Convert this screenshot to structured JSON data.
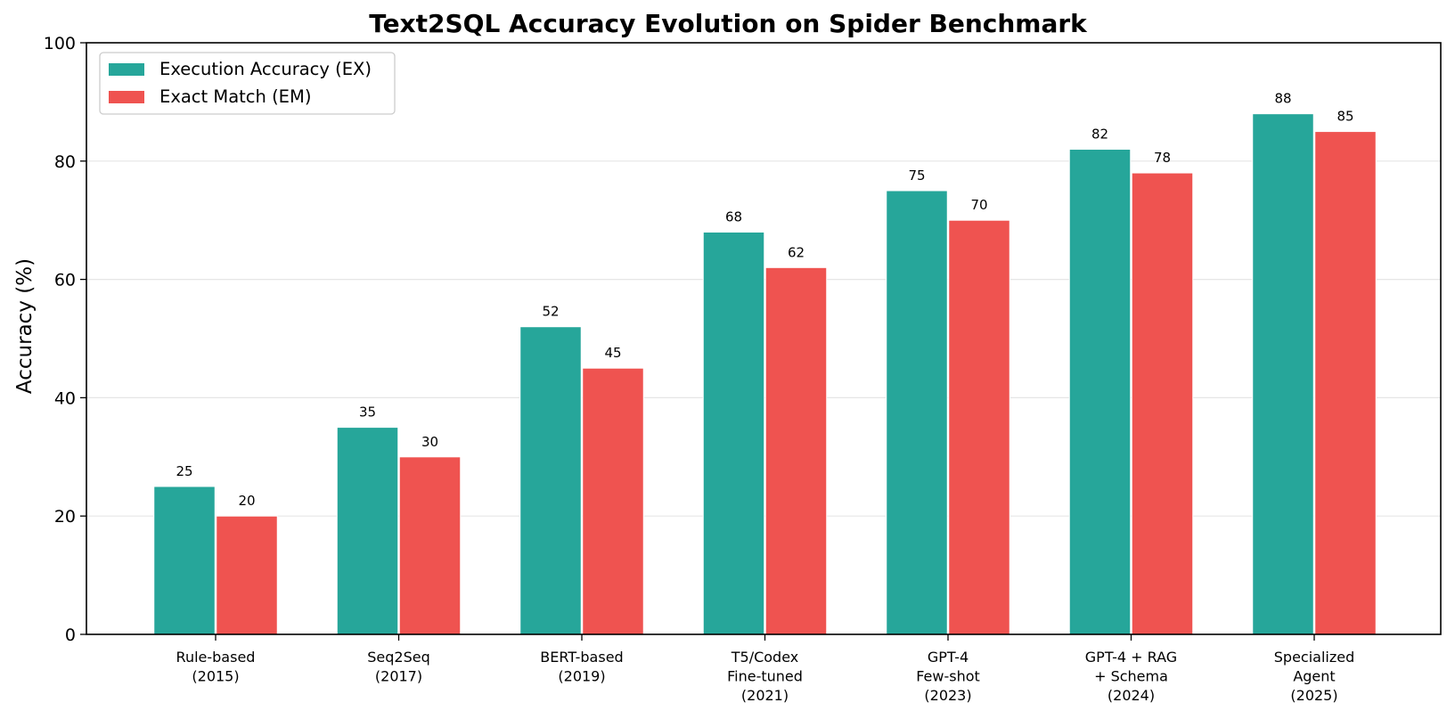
{
  "chart_data": {
    "type": "bar",
    "title": "Text2SQL Accuracy Evolution on Spider Benchmark",
    "xlabel": "",
    "ylabel": "Accuracy (%)",
    "ylim": [
      0,
      100
    ],
    "yticks": [
      0,
      20,
      40,
      60,
      80,
      100
    ],
    "grid": "horizontal",
    "legend_position": "top-left",
    "categories": [
      [
        "Rule-based",
        "(2015)"
      ],
      [
        "Seq2Seq",
        "(2017)"
      ],
      [
        "BERT-based",
        "(2019)"
      ],
      [
        "T5/Codex",
        "Fine-tuned",
        "(2021)"
      ],
      [
        "GPT-4",
        "Few-shot",
        "(2023)"
      ],
      [
        "GPT-4 + RAG",
        "+ Schema",
        "(2024)"
      ],
      [
        "Specialized",
        "Agent",
        "(2025)"
      ]
    ],
    "series": [
      {
        "name": "Execution Accuracy (EX)",
        "color": "#26a69a",
        "values": [
          25,
          35,
          52,
          68,
          75,
          82,
          88
        ]
      },
      {
        "name": "Exact Match (EM)",
        "color": "#ef5350",
        "values": [
          20,
          30,
          45,
          62,
          70,
          78,
          85
        ]
      }
    ]
  }
}
